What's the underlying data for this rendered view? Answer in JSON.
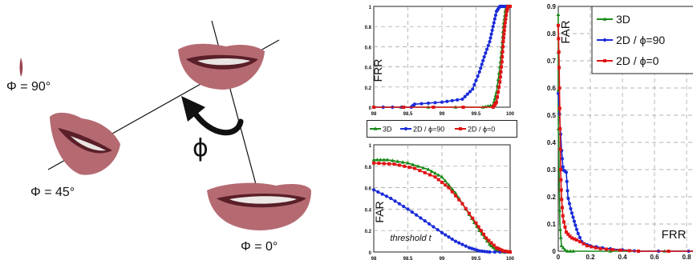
{
  "labels": {
    "phi90": "Φ = 90°",
    "phi45": "Φ = 45°",
    "phi0": "Φ = 0°",
    "phi_symbol": "ϕ"
  },
  "colors": {
    "3d": "#1a8a1a",
    "2d_phi90": "#1a2bd8",
    "2d_phi0": "#e01414",
    "lip": "#b05a62",
    "lip_dark": "#6e2a34",
    "grid": "#9a9a9a"
  },
  "chart_data": [
    {
      "type": "line",
      "id": "frr",
      "title": "",
      "ylabel": "FRR",
      "xlabel": "",
      "xlim": [
        98,
        100
      ],
      "ylim": [
        0,
        1
      ],
      "x_ticks": [
        "98",
        "98.5",
        "99",
        "99.5",
        "100"
      ],
      "y_ticks": [
        "0",
        "0.2",
        "0.4",
        "0.6",
        "0.8",
        "1"
      ],
      "series": [
        {
          "name": "3D",
          "color": "#1a8a1a",
          "marker": "triangle",
          "x": [
            98,
            99.6,
            99.75,
            99.8,
            99.85,
            99.88,
            99.9,
            99.93,
            99.95,
            100
          ],
          "y": [
            0,
            0,
            0.02,
            0.15,
            0.4,
            0.6,
            0.8,
            0.95,
            1,
            1
          ]
        },
        {
          "name": "2D / ϕ=90",
          "color": "#1a2bd8",
          "marker": "circle",
          "x": [
            98,
            98.55,
            98.6,
            99.0,
            99.3,
            99.45,
            99.55,
            99.62,
            99.7,
            99.75,
            99.8,
            99.85,
            99.9,
            100
          ],
          "y": [
            0,
            0,
            0.03,
            0.05,
            0.08,
            0.18,
            0.35,
            0.5,
            0.65,
            0.8,
            0.95,
            1,
            1,
            1
          ]
        },
        {
          "name": "2D / ϕ=0",
          "color": "#e01414",
          "marker": "square",
          "x": [
            98,
            99.75,
            99.8,
            99.85,
            99.88,
            99.9,
            99.92,
            99.95,
            99.97,
            100
          ],
          "y": [
            0,
            0,
            0.05,
            0.25,
            0.45,
            0.65,
            0.8,
            0.95,
            1,
            1
          ]
        }
      ]
    },
    {
      "type": "line",
      "id": "far",
      "title": "",
      "ylabel": "FAR",
      "xlabel": "threshold t",
      "xlim": [
        98,
        100
      ],
      "ylim": [
        0,
        1
      ],
      "x_ticks": [
        "98",
        "98.5",
        "99",
        "99.5",
        "100"
      ],
      "y_ticks": [
        "0",
        "0.2",
        "0.4",
        "0.6",
        "0.8",
        "1"
      ],
      "series": [
        {
          "name": "3D",
          "color": "#1a8a1a",
          "marker": "triangle",
          "x": [
            98,
            98.2,
            98.5,
            98.8,
            99.0,
            99.2,
            99.4,
            99.55,
            99.7,
            99.8,
            99.9,
            100
          ],
          "y": [
            0.86,
            0.86,
            0.83,
            0.77,
            0.7,
            0.55,
            0.35,
            0.2,
            0.07,
            0.02,
            0,
            0
          ]
        },
        {
          "name": "2D / ϕ=90",
          "color": "#1a2bd8",
          "marker": "circle",
          "x": [
            98,
            98.25,
            98.5,
            98.75,
            99.0,
            99.2,
            99.4,
            99.55,
            99.7,
            100
          ],
          "y": [
            0.58,
            0.5,
            0.4,
            0.29,
            0.18,
            0.1,
            0.04,
            0.01,
            0,
            0
          ]
        },
        {
          "name": "2D / ϕ=0",
          "color": "#e01414",
          "marker": "square",
          "x": [
            98,
            98.3,
            98.6,
            98.9,
            99.1,
            99.3,
            99.5,
            99.65,
            99.8,
            99.9,
            100
          ],
          "y": [
            0.83,
            0.82,
            0.78,
            0.7,
            0.6,
            0.45,
            0.27,
            0.13,
            0.04,
            0.01,
            0
          ]
        }
      ]
    },
    {
      "type": "line",
      "id": "roc",
      "title": "",
      "ylabel": "FAR",
      "xlabel": "FRR",
      "xlim": [
        0,
        1
      ],
      "ylim": [
        0,
        0.9
      ],
      "x_ticks": [
        "0",
        "0.2",
        "0.4",
        "0.6",
        "0.8"
      ],
      "y_ticks": [
        "0",
        "0.1",
        "0.2",
        "0.3",
        "0.4",
        "0.5",
        "0.6",
        "0.7",
        "0.8",
        "0.9"
      ],
      "series": [
        {
          "name": "3D",
          "color": "#1a8a1a",
          "marker": "triangle",
          "x": [
            0,
            0,
            0.01,
            0.02,
            0.05,
            0.1,
            1
          ],
          "y": [
            0.87,
            0.5,
            0.1,
            0.02,
            0,
            0,
            0
          ]
        },
        {
          "name": "2D  /  ϕ=90",
          "color": "#1a2bd8",
          "marker": "circle",
          "x": [
            0,
            0.02,
            0.03,
            0.05,
            0.06,
            0.08,
            0.1,
            0.12,
            0.15,
            0.2,
            0.3,
            0.5,
            1
          ],
          "y": [
            0.58,
            0.38,
            0.3,
            0.29,
            0.2,
            0.15,
            0.11,
            0.07,
            0.03,
            0.02,
            0.01,
            0,
            0
          ]
        },
        {
          "name": "2D  /  ϕ=0",
          "color": "#e01414",
          "marker": "square",
          "x": [
            0,
            0.005,
            0.01,
            0.015,
            0.02,
            0.03,
            0.05,
            0.08,
            0.12,
            0.18,
            0.25,
            0.35,
            0.5,
            1
          ],
          "y": [
            0.83,
            0.7,
            0.5,
            0.3,
            0.2,
            0.12,
            0.07,
            0.05,
            0.04,
            0.02,
            0.01,
            0.005,
            0,
            0
          ]
        }
      ]
    }
  ]
}
